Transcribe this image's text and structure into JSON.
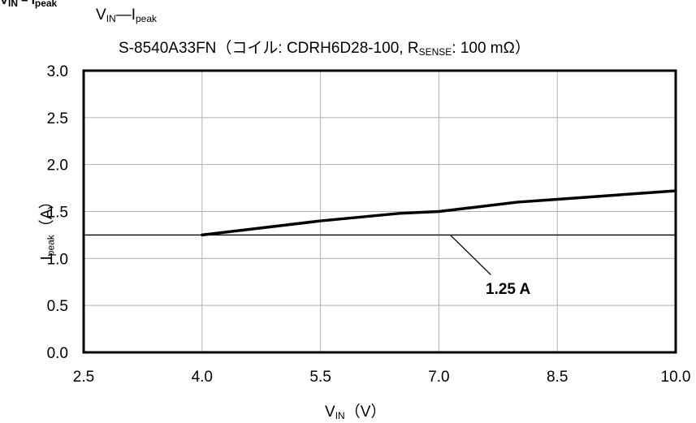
{
  "header": {
    "cut_title": "V",
    "cut_title_sub1": "IN",
    "cut_title_mid": " – I",
    "cut_title_sub2": "peak"
  },
  "chart_data": {
    "type": "line",
    "title_main": "V",
    "title_main_sub1": "IN",
    "title_main_dash": "—I",
    "title_main_sub2": "peak",
    "subtitle_prefix": "S-8540A33FN（コイル: CDRH6D28-100, R",
    "subtitle_sub": "SENSE",
    "subtitle_suffix": ": 100 mΩ）",
    "xlabel": "V",
    "xlabel_sub": "IN",
    "xlabel_unit": "（V）",
    "ylabel": "I",
    "ylabel_sub": "peak",
    "ylabel_unit": "（A）",
    "xlim": [
      2.5,
      10.0
    ],
    "ylim": [
      0.0,
      3.0
    ],
    "x_ticks": [
      "2.5",
      "4.0",
      "5.5",
      "7.0",
      "8.5",
      "10.0"
    ],
    "y_ticks": [
      "0.0",
      "0.5",
      "1.0",
      "1.5",
      "2.0",
      "2.5",
      "3.0"
    ],
    "grid": true,
    "series": [
      {
        "x": [
          4.0,
          5.0,
          5.5,
          6.0,
          6.5,
          7.0,
          7.5,
          8.0,
          8.5,
          9.0,
          10.0
        ],
        "y": [
          1.25,
          1.35,
          1.4,
          1.44,
          1.48,
          1.5,
          1.55,
          1.6,
          1.63,
          1.66,
          1.72
        ]
      }
    ],
    "reference_line": {
      "y": 1.25,
      "label": "1.25 A"
    }
  }
}
